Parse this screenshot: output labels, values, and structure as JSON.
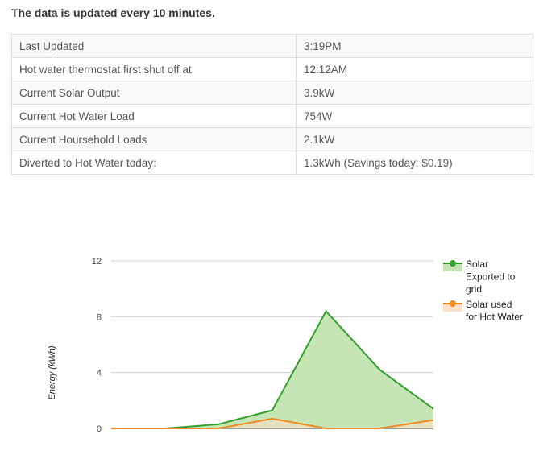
{
  "notice": "The data is updated every 10 minutes.",
  "table": [
    {
      "label": "Last Updated",
      "value": "3:19PM"
    },
    {
      "label": "Hot water thermostat first shut off at",
      "value": "12:12AM"
    },
    {
      "label": "Current Solar Output",
      "value": "3.9kW"
    },
    {
      "label": "Current Hot Water Load",
      "value": "754W"
    },
    {
      "label": "Current Hoursehold Loads",
      "value": "2.1kW"
    },
    {
      "label": "Diverted to Hot Water today:",
      "value": "1.3kWh (Savings today: $0.19)"
    }
  ],
  "colors": {
    "solar": "#33a02c",
    "solar_fill": "#c5e5b4",
    "hot_water": "#f08a24",
    "hot_water_fill": "#fce0c8",
    "grid": "#cccccc"
  },
  "chart_data": {
    "type": "area",
    "title": "",
    "xlabel": "",
    "ylabel": "Energy (kWh)",
    "ylim": [
      0,
      12
    ],
    "yticks": [
      0,
      4,
      8,
      12
    ],
    "x": [
      1,
      2,
      3,
      4,
      5,
      6,
      7
    ],
    "series": [
      {
        "name": "Solar Exported to grid",
        "legend_lines": [
          "Solar",
          "Exported to",
          "grid"
        ],
        "color": "#33a02c",
        "values": [
          0,
          0,
          0.3,
          1.3,
          8.4,
          4.2,
          1.4
        ]
      },
      {
        "name": "Solar used for Hot Water",
        "legend_lines": [
          "Solar used",
          "for Hot Water"
        ],
        "color": "#f08a24",
        "values": [
          0,
          0,
          0,
          0.7,
          0,
          0,
          0.6
        ]
      }
    ],
    "legend_position": "right",
    "grid": true
  }
}
